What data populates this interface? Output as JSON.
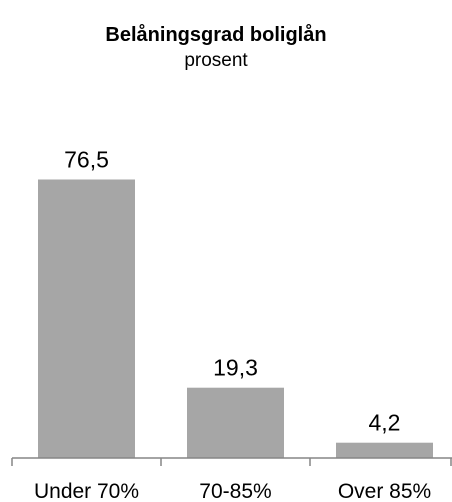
{
  "chart_data": {
    "type": "bar",
    "title": "Belåningsgrad boliglån",
    "subtitle": "prosent",
    "categories": [
      "Under 70%",
      "70-85%",
      "Over 85%"
    ],
    "values": [
      76.5,
      19.3,
      4.2
    ],
    "data_labels": [
      "76,5",
      "19,3",
      "4,2"
    ],
    "xlabel": "",
    "ylabel": "",
    "ylim": [
      0,
      100
    ],
    "grid": false,
    "legend": "none",
    "bar_color": "#a6a6a6",
    "axis_color": "#868686"
  }
}
